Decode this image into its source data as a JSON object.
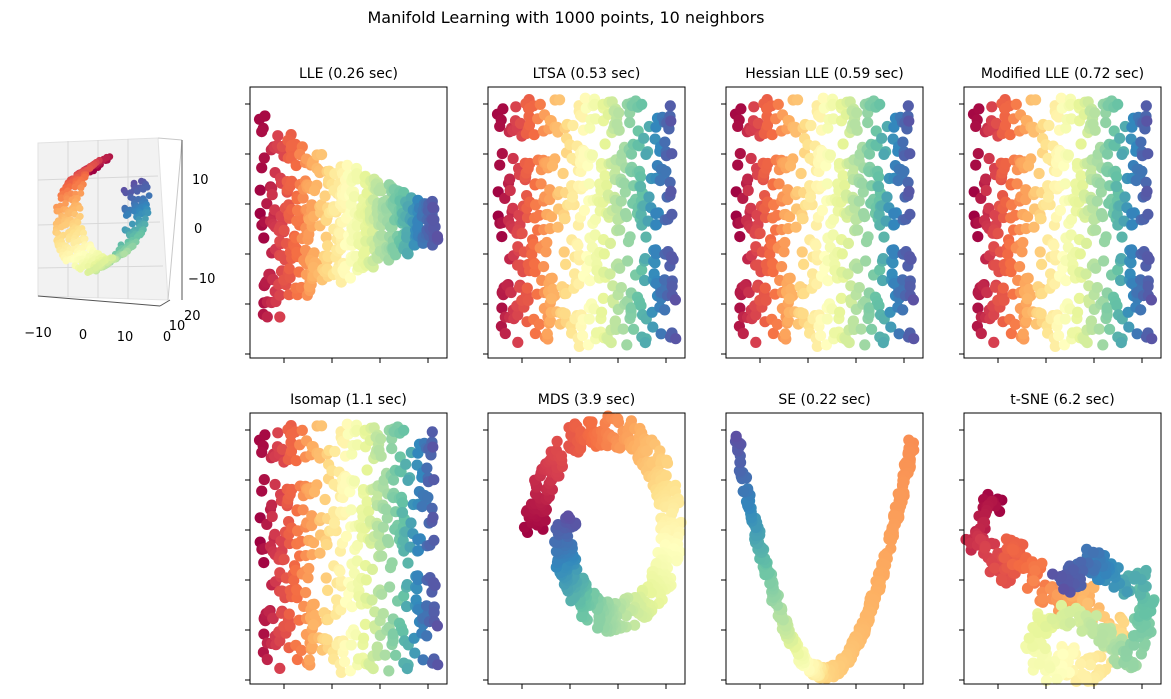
{
  "figure": {
    "title": "Manifold Learning with 1000 points, 10 neighbors"
  },
  "surface3d": {
    "type": "scatter3d",
    "manifold": "s-curve",
    "colormap": "Spectral",
    "x_ticks": [
      "−10",
      "0",
      "10"
    ],
    "y_ticks": [
      "0",
      "10",
      "20"
    ],
    "z_ticks": [
      "10",
      "0",
      "−10"
    ]
  },
  "chart_data": [
    {
      "type": "scatter",
      "title": "LLE (0.26 sec)",
      "shape": "lle",
      "colormap": "Spectral"
    },
    {
      "type": "scatter",
      "title": "LTSA (0.53 sec)",
      "shape": "ltsa",
      "colormap": "Spectral"
    },
    {
      "type": "scatter",
      "title": "Hessian LLE (0.59 sec)",
      "shape": "hessian",
      "colormap": "Spectral"
    },
    {
      "type": "scatter",
      "title": "Modified LLE (0.72 sec)",
      "shape": "modified",
      "colormap": "Spectral"
    },
    {
      "type": "scatter",
      "title": "Isomap (1.1 sec)",
      "shape": "isomap",
      "colormap": "Spectral"
    },
    {
      "type": "scatter",
      "title": "MDS (3.9 sec)",
      "shape": "mds",
      "colormap": "Spectral"
    },
    {
      "type": "scatter",
      "title": "SE (0.22 sec)",
      "shape": "se",
      "colormap": "Spectral"
    },
    {
      "type": "scatter",
      "title": "t-SNE (6.2 sec)",
      "shape": "tsne",
      "colormap": "Spectral"
    }
  ]
}
